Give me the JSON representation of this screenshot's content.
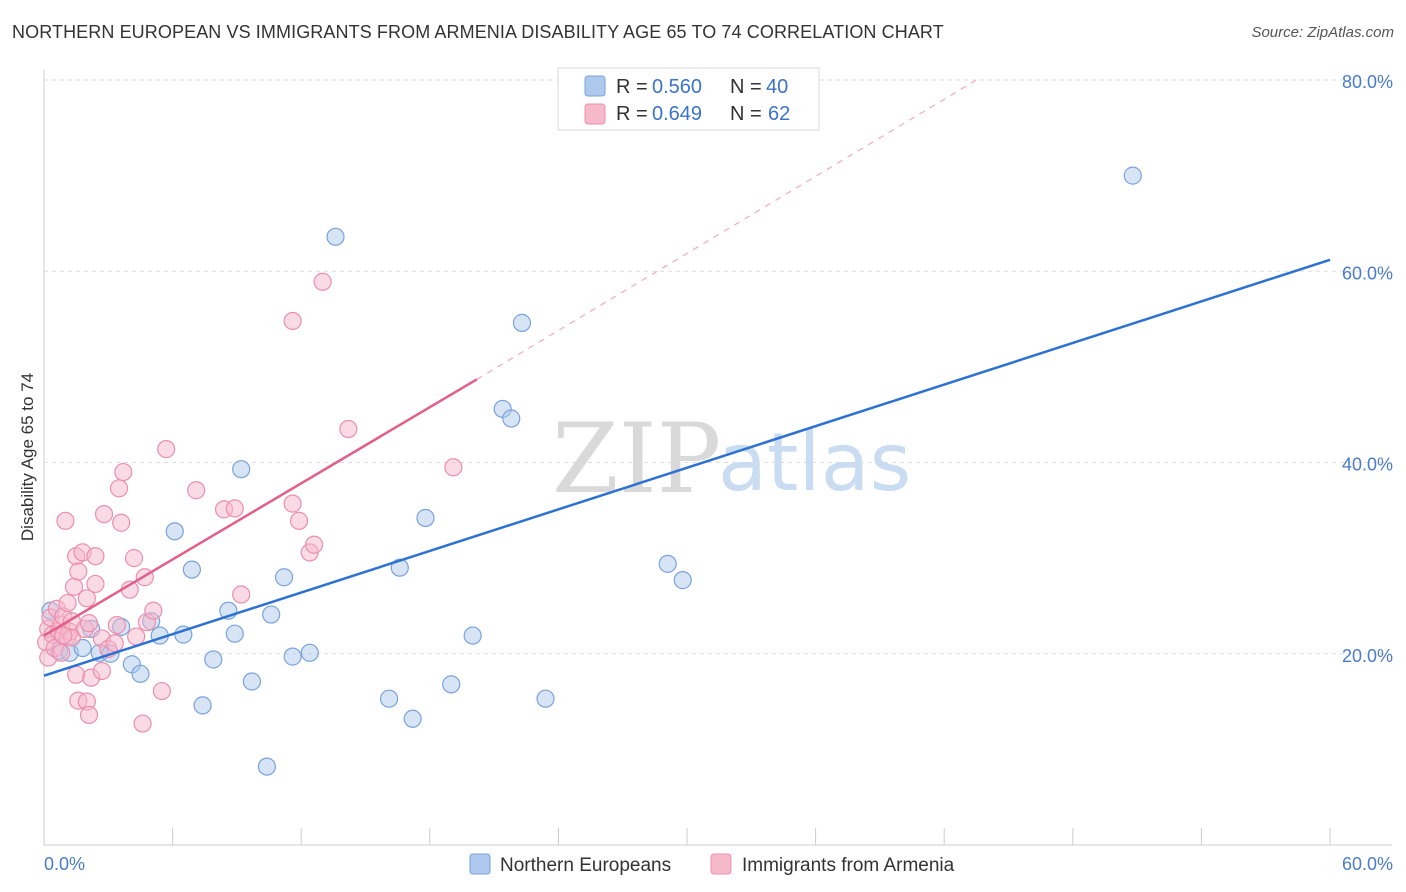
{
  "title": "NORTHERN EUROPEAN VS IMMIGRANTS FROM ARMENIA DISABILITY AGE 65 TO 74 CORRELATION CHART",
  "source": "Source: ZipAtlas.com",
  "watermark": {
    "zip": "ZIP",
    "atlas": "atlas"
  },
  "legend_top": {
    "r_label": "R =",
    "n_label": "N =",
    "series": [
      {
        "r": "0.560",
        "n": "40"
      },
      {
        "r": "0.649",
        "n": "62"
      }
    ]
  },
  "colors": {
    "blue_fill": "#adc9ee",
    "blue_stroke": "#7aa3dc",
    "blue_line": "#2d72d2",
    "pink_fill": "#f6b8cb",
    "pink_stroke": "#ec8fad",
    "pink_line": "#e05f8c",
    "grid": "#dddddd",
    "tick_label": "#4a7cc7"
  },
  "chart_data": {
    "type": "scatter",
    "title": "NORTHERN EUROPEAN VS IMMIGRANTS FROM ARMENIA DISABILITY AGE 65 TO 74 CORRELATION CHART",
    "xlabel": "",
    "ylabel": "Disability Age 65 to 74",
    "xlim": [
      0,
      60
    ],
    "ylim": [
      0,
      80
    ],
    "x_tick_labels": [
      "0.0%",
      "60.0%"
    ],
    "y_ticks": [
      20,
      40,
      60,
      80
    ],
    "y_tick_labels": [
      "20.0%",
      "40.0%",
      "60.0%",
      "80.0%"
    ],
    "series": [
      {
        "name": "Northern Europeans",
        "color": "#adc9ee",
        "trend": {
          "x": [
            0,
            60
          ],
          "y": [
            17.7,
            61.2
          ],
          "style": "solid"
        },
        "points": [
          [
            0.3,
            24.5
          ],
          [
            0.7,
            20.3
          ],
          [
            1.2,
            20.1
          ],
          [
            1.8,
            20.6
          ],
          [
            2.2,
            22.6
          ],
          [
            2.6,
            20.1
          ],
          [
            3.1,
            20.0
          ],
          [
            3.6,
            22.8
          ],
          [
            4.1,
            18.9
          ],
          [
            4.5,
            17.9
          ],
          [
            5.0,
            23.4
          ],
          [
            5.4,
            21.9
          ],
          [
            6.1,
            32.8
          ],
          [
            6.5,
            22.0
          ],
          [
            6.9,
            28.8
          ],
          [
            7.4,
            14.6
          ],
          [
            7.9,
            19.4
          ],
          [
            8.6,
            24.5
          ],
          [
            8.9,
            22.1
          ],
          [
            9.2,
            39.3
          ],
          [
            9.7,
            17.1
          ],
          [
            10.4,
            8.2
          ],
          [
            10.6,
            24.1
          ],
          [
            11.2,
            28.0
          ],
          [
            11.6,
            19.7
          ],
          [
            12.4,
            20.1
          ],
          [
            13.6,
            63.6
          ],
          [
            16.1,
            15.3
          ],
          [
            16.6,
            29.0
          ],
          [
            17.2,
            13.2
          ],
          [
            17.8,
            34.2
          ],
          [
            19.0,
            16.8
          ],
          [
            20.0,
            21.9
          ],
          [
            21.4,
            45.6
          ],
          [
            21.8,
            44.6
          ],
          [
            22.3,
            54.6
          ],
          [
            23.4,
            15.3
          ],
          [
            29.1,
            29.4
          ],
          [
            29.8,
            27.7
          ],
          [
            50.8,
            70.0
          ]
        ]
      },
      {
        "name": "Immigrants from Armenia",
        "color": "#f6b8cb",
        "trend": {
          "x": [
            0,
            20.2
          ],
          "y": [
            21.9,
            48.7
          ],
          "style": "solid",
          "dashed_to": {
            "x": 43.5,
            "y": 80.0
          }
        },
        "points": [
          [
            0.1,
            21.2
          ],
          [
            0.2,
            22.6
          ],
          [
            0.2,
            19.6
          ],
          [
            0.3,
            23.8
          ],
          [
            0.4,
            22.0
          ],
          [
            0.5,
            20.6
          ],
          [
            0.6,
            24.7
          ],
          [
            0.7,
            22.4
          ],
          [
            0.8,
            23.0
          ],
          [
            0.8,
            20.1
          ],
          [
            0.9,
            23.9
          ],
          [
            1.0,
            33.9
          ],
          [
            1.1,
            21.8
          ],
          [
            1.1,
            25.3
          ],
          [
            1.2,
            22.3
          ],
          [
            1.3,
            21.7
          ],
          [
            1.3,
            23.4
          ],
          [
            1.4,
            27.0
          ],
          [
            1.5,
            17.8
          ],
          [
            1.5,
            30.2
          ],
          [
            1.6,
            28.6
          ],
          [
            1.6,
            15.1
          ],
          [
            1.8,
            30.6
          ],
          [
            1.9,
            22.6
          ],
          [
            2.0,
            15.0
          ],
          [
            2.0,
            25.8
          ],
          [
            2.1,
            13.6
          ],
          [
            2.1,
            23.2
          ],
          [
            2.2,
            17.5
          ],
          [
            2.4,
            27.3
          ],
          [
            2.4,
            30.2
          ],
          [
            2.7,
            18.2
          ],
          [
            2.7,
            21.6
          ],
          [
            2.8,
            34.6
          ],
          [
            3.0,
            20.5
          ],
          [
            3.3,
            21.1
          ],
          [
            3.4,
            23.0
          ],
          [
            3.5,
            37.3
          ],
          [
            3.6,
            33.7
          ],
          [
            3.7,
            39.0
          ],
          [
            4.0,
            26.7
          ],
          [
            4.2,
            30.0
          ],
          [
            4.3,
            21.8
          ],
          [
            4.6,
            12.7
          ],
          [
            4.7,
            28.0
          ],
          [
            4.8,
            23.3
          ],
          [
            5.1,
            24.5
          ],
          [
            5.5,
            16.1
          ],
          [
            5.7,
            41.4
          ],
          [
            7.1,
            37.1
          ],
          [
            8.4,
            35.1
          ],
          [
            8.9,
            35.2
          ],
          [
            9.2,
            26.2
          ],
          [
            11.6,
            54.8
          ],
          [
            11.6,
            35.7
          ],
          [
            11.9,
            33.9
          ],
          [
            12.4,
            30.6
          ],
          [
            12.6,
            31.4
          ],
          [
            13.0,
            58.9
          ],
          [
            14.2,
            43.5
          ],
          [
            19.1,
            39.5
          ],
          [
            0.9,
            21.9
          ]
        ]
      }
    ]
  },
  "bottom_legend": [
    "Northern Europeans",
    "Immigrants from Armenia"
  ]
}
